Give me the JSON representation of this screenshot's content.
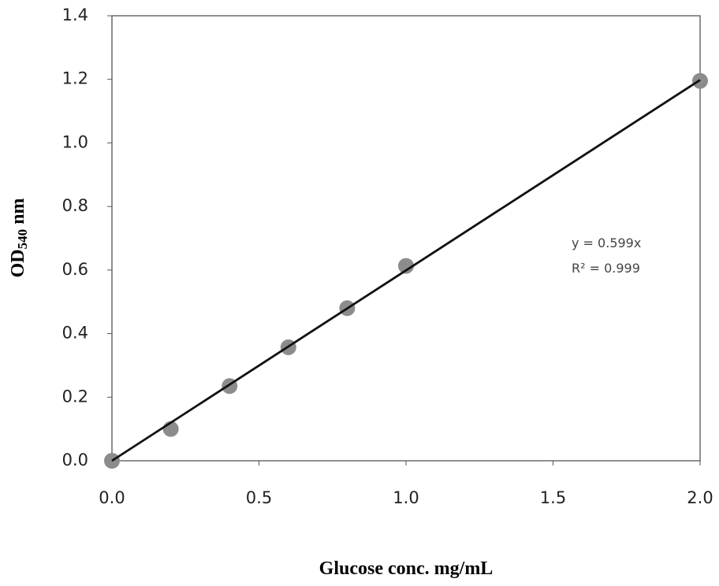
{
  "chart_data": {
    "type": "scatter",
    "x_label": "Glucose conc. mg/mL",
    "y_label": [
      "OD",
      "540",
      " nm"
    ],
    "x": [
      0,
      0.2,
      0.4,
      0.6,
      0.8,
      1.0,
      2.0
    ],
    "values": [
      0,
      0.1,
      0.235,
      0.357,
      0.48,
      0.613,
      1.195
    ],
    "color": "#8c8c8c",
    "trendline": {
      "slope": 0.599,
      "label": "y = 0.599x",
      "r2_label": "R² = 0.999",
      "color": "#111111"
    },
    "xlim": [
      0,
      2
    ],
    "xticks": [
      {
        "value": 0,
        "label": "0.0"
      },
      0.5,
      {
        "value": 1,
        "label": "1.0"
      },
      1.5,
      {
        "value": 2,
        "label": "2.0"
      }
    ],
    "ylim": [
      0,
      1.4
    ],
    "yticks": [
      {
        "value": 0,
        "label": "0.0"
      },
      0.2,
      0.4,
      0.6,
      0.8,
      {
        "value": 1,
        "label": "1.0"
      },
      1.2,
      1.4
    ],
    "grid": false
  }
}
